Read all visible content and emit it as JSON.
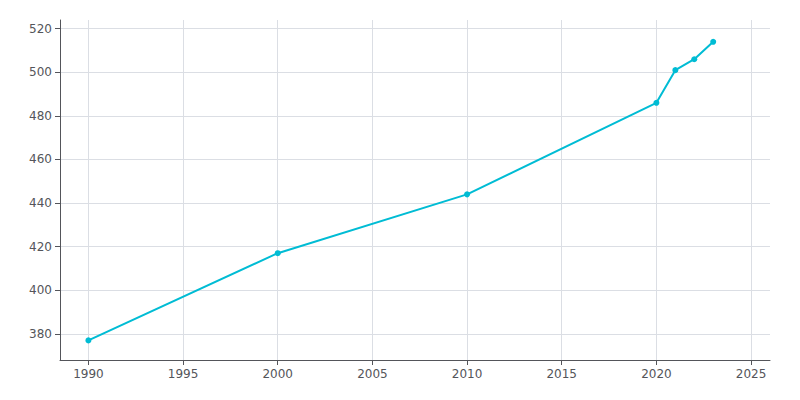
{
  "chart_data": {
    "type": "line",
    "x": [
      1990,
      2000,
      2010,
      2020,
      2021,
      2022,
      2023
    ],
    "values": [
      377,
      417,
      444,
      486,
      501,
      506,
      514
    ],
    "color": "#00bcd4",
    "marker": "circle",
    "xlim": [
      1988.5,
      2026
    ],
    "ylim": [
      368,
      524
    ],
    "xticks": [
      1990,
      1995,
      2000,
      2005,
      2010,
      2015,
      2020,
      2025
    ],
    "yticks": [
      380,
      400,
      420,
      440,
      460,
      480,
      500,
      520
    ],
    "grid": true
  }
}
